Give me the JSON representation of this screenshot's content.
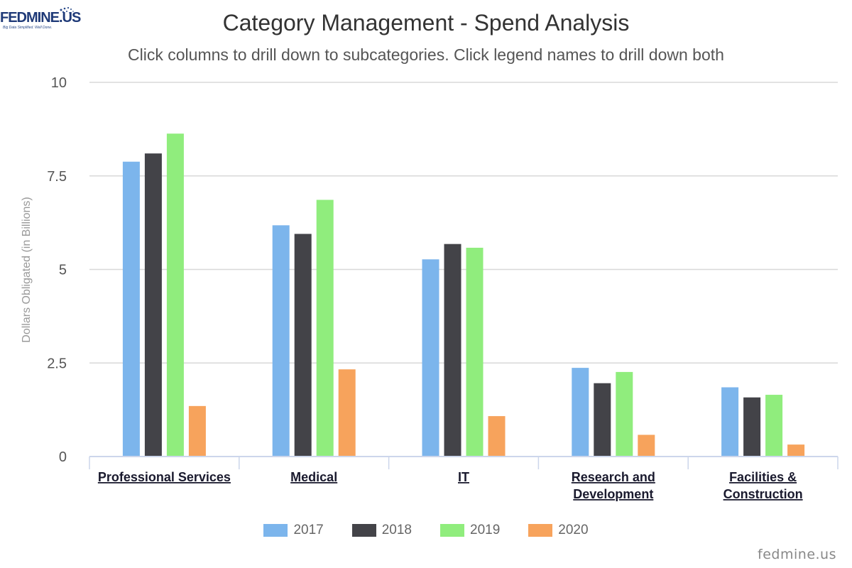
{
  "logo": {
    "text": "FEDMINE.US",
    "tagline": "Big Data Simplified. Well Done."
  },
  "chart_data": {
    "type": "bar",
    "title": "Category Management - Spend Analysis",
    "subtitle": "Click columns to drill down to subcategories. Click legend names to drill down both",
    "xlabel": "",
    "ylabel": "Dollars Obligated (in Billions)",
    "ylim": [
      0,
      10
    ],
    "yticks": [
      "0",
      "2.5",
      "5",
      "7.5",
      "10"
    ],
    "ytick_values": [
      0,
      2.5,
      5,
      7.5,
      10
    ],
    "grid": true,
    "legend_position": "bottom",
    "categories": [
      [
        "Professional Services"
      ],
      [
        "Medical"
      ],
      [
        "IT"
      ],
      [
        "Research and",
        "Development"
      ],
      [
        "Facilities &",
        "Construction"
      ]
    ],
    "series": [
      {
        "name": "2017",
        "color": "#7cb5ec",
        "values": [
          7.88,
          6.18,
          5.27,
          2.37,
          1.85
        ]
      },
      {
        "name": "2018",
        "color": "#434348",
        "values": [
          8.1,
          5.95,
          5.68,
          1.96,
          1.58
        ]
      },
      {
        "name": "2019",
        "color": "#90ed7d",
        "values": [
          8.63,
          6.86,
          5.58,
          2.26,
          1.65
        ]
      },
      {
        "name": "2020",
        "color": "#f7a35c",
        "values": [
          1.35,
          2.33,
          1.08,
          0.58,
          0.32
        ]
      }
    ]
  },
  "credit": "fedmine.us"
}
